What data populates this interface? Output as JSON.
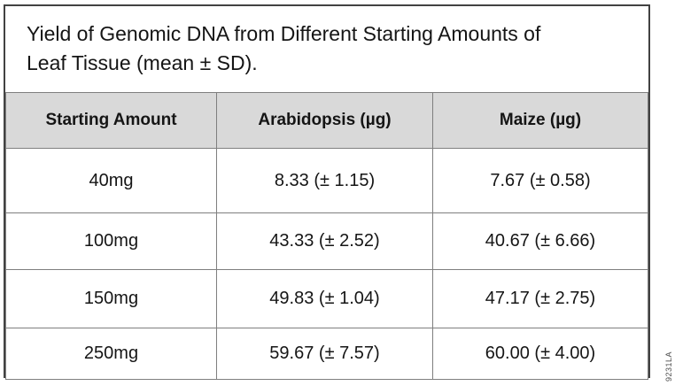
{
  "figure": {
    "title": "Yield of Genomic DNA from Different Starting Amounts of\nLeaf Tissue (mean ± SD).",
    "code": "9231LA"
  },
  "table": {
    "columns": [
      "Starting Amount",
      "Arabidopsis (µg)",
      "Maize (µg)"
    ],
    "rows": [
      [
        "40mg",
        "8.33 (± 1.15)",
        "7.67 (± 0.58)"
      ],
      [
        "100mg",
        "43.33 (± 2.52)",
        "40.67 (± 6.66)"
      ],
      [
        "150mg",
        "49.83 (± 1.04)",
        "47.17 (± 2.75)"
      ],
      [
        "250mg",
        "59.67 (± 7.57)",
        "60.00 (± 4.00)"
      ]
    ]
  },
  "chart_data": {
    "type": "table",
    "title": "Yield of Genomic DNA from Different Starting Amounts of Leaf Tissue (mean ± SD).",
    "categories": [
      "40mg",
      "100mg",
      "150mg",
      "250mg"
    ],
    "series": [
      {
        "name": "Arabidopsis (µg)",
        "mean": [
          8.33,
          43.33,
          49.83,
          59.67
        ],
        "sd": [
          1.15,
          2.52,
          1.04,
          7.57
        ]
      },
      {
        "name": "Maize (µg)",
        "mean": [
          7.67,
          40.67,
          47.17,
          60.0
        ],
        "sd": [
          0.58,
          6.66,
          2.75,
          4.0
        ]
      }
    ]
  },
  "colors": {
    "header_bg": "#d9d9d9",
    "grid_border": "#7f7f7f",
    "outer_border": "#424242"
  }
}
